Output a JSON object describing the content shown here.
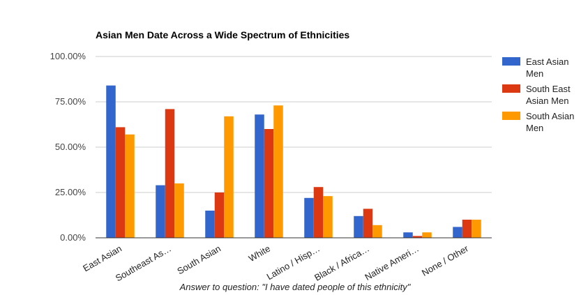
{
  "chart_data": {
    "type": "bar",
    "title": "Asian Men Date Across a Wide Spectrum of Ethnicities",
    "xlabel": "Answer to question: \"I have dated people of this ethnicity\"",
    "ylabel": "",
    "ylim": [
      0,
      100
    ],
    "yticks": [
      "0.00%",
      "25.00%",
      "50.00%",
      "75.00%",
      "100.00%"
    ],
    "ytick_values": [
      0,
      25,
      50,
      75,
      100
    ],
    "grid": true,
    "legend_position": "right",
    "categories": [
      "East Asian",
      "Southeast As…",
      "South Asian",
      "White",
      "Latino / Hisp…",
      "Black / Africa…",
      "Native Ameri…",
      "None / Other"
    ],
    "series": [
      {
        "name": "East Asian Men",
        "legend_lines": [
          "East Asian",
          "Men"
        ],
        "color": "#3366cc",
        "values": [
          84,
          29,
          15,
          68,
          22,
          12,
          3,
          6
        ]
      },
      {
        "name": "South East Asian Men",
        "legend_lines": [
          "South East",
          "Asian Men"
        ],
        "color": "#dc3912",
        "values": [
          61,
          71,
          25,
          60,
          28,
          16,
          1,
          10
        ]
      },
      {
        "name": "South Asian Men",
        "legend_lines": [
          "South Asian",
          "Men"
        ],
        "color": "#ff9900",
        "values": [
          57,
          30,
          67,
          73,
          23,
          7,
          3,
          10
        ]
      }
    ]
  }
}
